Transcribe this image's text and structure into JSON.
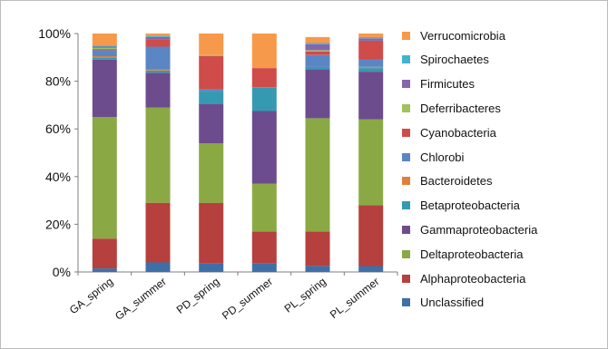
{
  "chart_data": {
    "type": "bar",
    "stacked": true,
    "percent": true,
    "categories": [
      "GA_spring",
      "GA_summer",
      "PD_spring",
      "PD_summer",
      "PL_spring",
      "PL_summer"
    ],
    "y_ticks": [
      "0%",
      "20%",
      "40%",
      "60%",
      "80%",
      "100%"
    ],
    "ylim": [
      0,
      100
    ],
    "grid": false,
    "legend_position": "right",
    "series": [
      {
        "name": "Unclassified",
        "color": "#3F6FA8",
        "values": [
          1.5,
          4,
          3.5,
          3.5,
          2.5,
          2.5
        ]
      },
      {
        "name": "Alphaproteobacteria",
        "color": "#B6403D",
        "values": [
          12.5,
          25,
          25.5,
          13.5,
          14.5,
          25.5
        ]
      },
      {
        "name": "Deltaproteobacteria",
        "color": "#8AA944",
        "values": [
          51,
          40,
          25,
          20,
          47.5,
          36
        ]
      },
      {
        "name": "Gammaproteobacteria",
        "color": "#6D4C8E",
        "values": [
          24,
          14.5,
          16.5,
          30.5,
          20.5,
          20
        ]
      },
      {
        "name": "Betaproteobacteria",
        "color": "#3699B2",
        "values": [
          1,
          1,
          5.5,
          10,
          1,
          1.5
        ]
      },
      {
        "name": "Bacteroidetes",
        "color": "#E1803A",
        "values": [
          0.5,
          0.5,
          0,
          0,
          0,
          0.5
        ]
      },
      {
        "name": "Chlorobi",
        "color": "#5B86C5",
        "values": [
          2.5,
          9.5,
          0.5,
          0,
          5,
          3
        ]
      },
      {
        "name": "Cyanobacteria",
        "color": "#CF4C4A",
        "values": [
          0.5,
          3,
          14,
          8,
          1.5,
          8
        ]
      },
      {
        "name": "Deferribacteres",
        "color": "#A0C25A",
        "values": [
          0.5,
          0,
          0.5,
          0,
          0.5,
          0
        ]
      },
      {
        "name": "Firmicutes",
        "color": "#8566AE",
        "values": [
          0.5,
          1,
          0,
          0,
          2.5,
          1
        ]
      },
      {
        "name": "Spirochaetes",
        "color": "#3FB4CF",
        "values": [
          0.5,
          0.5,
          0,
          0,
          0.5,
          0.5
        ]
      },
      {
        "name": "Verrucomicrobia",
        "color": "#F6994A",
        "values": [
          5,
          1,
          9,
          14.5,
          2.5,
          1.5
        ]
      }
    ]
  }
}
